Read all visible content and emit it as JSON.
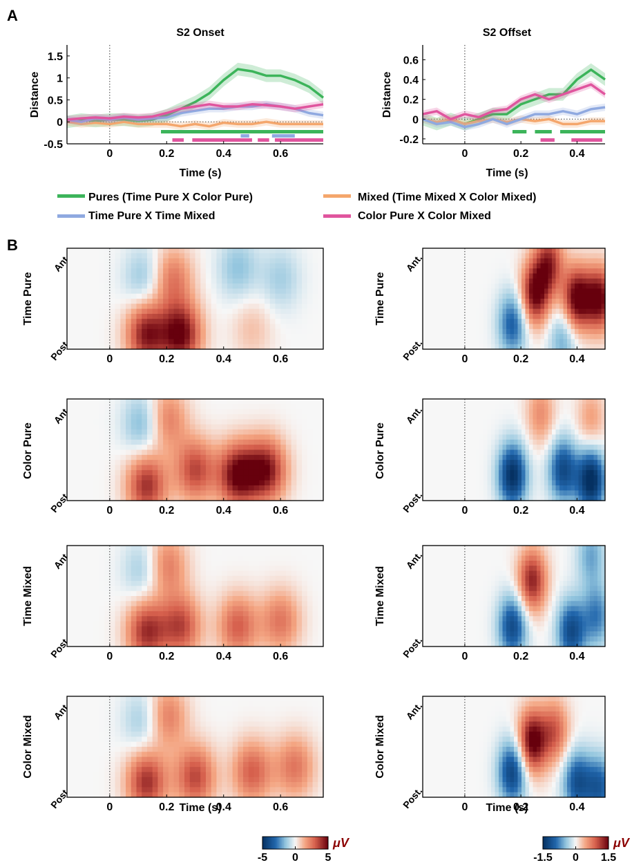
{
  "panel_labels": {
    "a": "A",
    "b": "B"
  },
  "colors": {
    "pures": "#3cb45a",
    "mixed": "#f4a66c",
    "time_pure_x_time_mixed": "#8fa9e0",
    "color_pure_x_color_mixed": "#e0559e"
  },
  "legend": [
    {
      "label": "Pures (Time Pure X Color Pure)",
      "color": "#3cb45a"
    },
    {
      "label": "Mixed (Time Mixed X Color Mixed)",
      "color": "#f4a66c"
    },
    {
      "label": "Time Pure X Time Mixed",
      "color": "#8fa9e0"
    },
    {
      "label": "Color Pure X Color Mixed",
      "color": "#e0559e"
    }
  ],
  "chart_data": [
    {
      "type": "line",
      "title": "S2 Onset",
      "xlabel": "Time (s)",
      "ylabel": "Distance",
      "xlim": [
        -0.15,
        0.75
      ],
      "ylim": [
        -0.5,
        1.75
      ],
      "xticks": [
        "0",
        "0.2",
        "0.4",
        "0.6"
      ],
      "yticks": [
        "-0.5",
        "0",
        "0.5",
        "1",
        "1.5"
      ],
      "x": [
        -0.15,
        -0.1,
        -0.05,
        0,
        0.05,
        0.1,
        0.15,
        0.2,
        0.25,
        0.3,
        0.35,
        0.4,
        0.45,
        0.5,
        0.55,
        0.6,
        0.65,
        0.7,
        0.75
      ],
      "series": [
        {
          "name": "Pures (Time Pure X Color Pure)",
          "values": [
            0.0,
            0.05,
            0.02,
            0.05,
            0.05,
            0.02,
            0.05,
            0.15,
            0.3,
            0.45,
            0.65,
            0.95,
            1.2,
            1.15,
            1.05,
            1.05,
            0.95,
            0.8,
            0.55
          ]
        },
        {
          "name": "Mixed (Time Mixed X Color Mixed)",
          "values": [
            0.0,
            -0.05,
            -0.02,
            -0.05,
            0.0,
            -0.05,
            -0.05,
            -0.05,
            -0.1,
            -0.05,
            -0.1,
            -0.02,
            -0.05,
            -0.05,
            0.0,
            -0.05,
            -0.05,
            -0.05,
            -0.05
          ]
        },
        {
          "name": "Time Pure X Time Mixed",
          "values": [
            0.05,
            0.0,
            0.08,
            0.05,
            0.1,
            0.05,
            0.08,
            0.1,
            0.2,
            0.25,
            0.3,
            0.3,
            0.35,
            0.35,
            0.4,
            0.35,
            0.3,
            0.2,
            0.15
          ]
        },
        {
          "name": "Color Pure X Color Mixed",
          "values": [
            0.05,
            0.08,
            0.1,
            0.08,
            0.12,
            0.1,
            0.12,
            0.2,
            0.3,
            0.35,
            0.4,
            0.35,
            0.35,
            0.4,
            0.38,
            0.35,
            0.3,
            0.35,
            0.4
          ]
        }
      ],
      "significance_bars": [
        {
          "color": "#3cb45a",
          "segments": [
            [
              0.18,
              0.75
            ]
          ]
        },
        {
          "color": "#8fa9e0",
          "segments": [
            [
              0.46,
              0.49
            ],
            [
              0.57,
              0.65
            ]
          ]
        },
        {
          "color": "#e0559e",
          "segments": [
            [
              0.22,
              0.26
            ],
            [
              0.29,
              0.5
            ],
            [
              0.52,
              0.56
            ],
            [
              0.58,
              0.75
            ]
          ]
        }
      ]
    },
    {
      "type": "line",
      "title": "S2 Offset",
      "xlabel": "Time (s)",
      "ylabel": "Distance",
      "xlim": [
        -0.15,
        0.5
      ],
      "ylim": [
        -0.25,
        0.75
      ],
      "xticks": [
        "0",
        "0.2",
        "0.4"
      ],
      "yticks": [
        "-0.2",
        "0",
        "0.2",
        "0.4",
        "0.6"
      ],
      "x": [
        -0.15,
        -0.1,
        -0.05,
        0,
        0.05,
        0.1,
        0.15,
        0.2,
        0.25,
        0.3,
        0.35,
        0.4,
        0.45,
        0.5
      ],
      "series": [
        {
          "name": "Pures (Time Pure X Color Pure)",
          "values": [
            0.0,
            -0.05,
            0.0,
            -0.05,
            0.0,
            0.05,
            0.05,
            0.15,
            0.2,
            0.25,
            0.25,
            0.4,
            0.5,
            0.4
          ]
        },
        {
          "name": "Mixed (Time Mixed X Color Mixed)",
          "values": [
            0.0,
            -0.03,
            0.0,
            -0.05,
            -0.02,
            0.0,
            -0.03,
            0.0,
            -0.02,
            0.0,
            -0.05,
            -0.05,
            -0.02,
            -0.02
          ]
        },
        {
          "name": "Time Pure X Time Mixed",
          "values": [
            0.0,
            -0.05,
            -0.03,
            -0.08,
            -0.05,
            0.0,
            -0.05,
            0.0,
            0.05,
            0.05,
            0.08,
            0.05,
            0.1,
            0.12
          ]
        },
        {
          "name": "Color Pure X Color Mixed",
          "values": [
            0.05,
            0.08,
            0.0,
            0.05,
            0.02,
            0.08,
            0.1,
            0.2,
            0.25,
            0.2,
            0.25,
            0.3,
            0.35,
            0.25
          ]
        }
      ],
      "significance_bars": [
        {
          "color": "#3cb45a",
          "segments": [
            [
              0.17,
              0.22
            ],
            [
              0.25,
              0.31
            ],
            [
              0.34,
              0.5
            ]
          ]
        },
        {
          "color": "#e0559e",
          "segments": [
            [
              0.27,
              0.32
            ],
            [
              0.38,
              0.49
            ]
          ]
        }
      ]
    },
    {
      "type": "heatmap",
      "condition": "Time Pure",
      "ylabel": "Time Pure",
      "yticks": [
        "Ant.",
        "Post."
      ],
      "xlim": [
        -0.15,
        0.75
      ],
      "xticks": [
        "0",
        "0.2",
        "0.4",
        "0.6"
      ],
      "xlabel": "",
      "blobs": [
        {
          "x": 0.13,
          "y": 0.85,
          "v": 4.5
        },
        {
          "x": 0.25,
          "y": 0.85,
          "v": 5
        },
        {
          "x": 0.22,
          "y": 0.3,
          "v": 2.5
        },
        {
          "x": 0.12,
          "y": 0.3,
          "v": -1.5
        },
        {
          "x": 0.45,
          "y": 0.2,
          "v": -1.5
        },
        {
          "x": 0.6,
          "y": 0.3,
          "v": -1.2
        },
        {
          "x": 0.5,
          "y": 0.8,
          "v": 1
        }
      ]
    },
    {
      "type": "heatmap",
      "condition": "Time Pure",
      "ylabel": "Time Pure",
      "yticks": [
        "Ant.",
        "Post."
      ],
      "xlim": [
        -0.15,
        0.5
      ],
      "xticks": [
        "0",
        "0.2",
        "0.4"
      ],
      "xlabel": "",
      "blobs": [
        {
          "x": 0.25,
          "y": 0.45,
          "v": 1.5
        },
        {
          "x": 0.4,
          "y": 0.5,
          "v": 1.6
        },
        {
          "x": 0.48,
          "y": 0.5,
          "v": 1.5
        },
        {
          "x": 0.3,
          "y": 0.15,
          "v": 1.2
        },
        {
          "x": 0.17,
          "y": 0.75,
          "v": -1
        },
        {
          "x": 0.35,
          "y": 0.9,
          "v": -0.6
        }
      ]
    },
    {
      "type": "heatmap",
      "condition": "Color Pure",
      "ylabel": "Color Pure",
      "yticks": [
        "Ant.",
        "Post."
      ],
      "xlim": [
        -0.15,
        0.75
      ],
      "xticks": [
        "0",
        "0.2",
        "0.4",
        "0.6"
      ],
      "xlabel": "",
      "blobs": [
        {
          "x": 0.13,
          "y": 0.85,
          "v": 4
        },
        {
          "x": 0.45,
          "y": 0.75,
          "v": 5
        },
        {
          "x": 0.55,
          "y": 0.7,
          "v": 4.5
        },
        {
          "x": 0.3,
          "y": 0.7,
          "v": 3.5
        },
        {
          "x": 0.2,
          "y": 0.2,
          "v": 2.5
        },
        {
          "x": 0.12,
          "y": 0.25,
          "v": -2
        }
      ]
    },
    {
      "type": "heatmap",
      "condition": "Color Pure",
      "ylabel": "Color Pure",
      "yticks": [
        "Ant.",
        "Post."
      ],
      "xlim": [
        -0.15,
        0.5
      ],
      "xticks": [
        "0",
        "0.2",
        "0.4"
      ],
      "xlabel": "",
      "blobs": [
        {
          "x": 0.17,
          "y": 0.75,
          "v": -1.5
        },
        {
          "x": 0.45,
          "y": 0.8,
          "v": -1.6
        },
        {
          "x": 0.35,
          "y": 0.7,
          "v": -1.2
        },
        {
          "x": 0.27,
          "y": 0.15,
          "v": 0.6
        },
        {
          "x": 0.45,
          "y": 0.2,
          "v": 0.5
        }
      ]
    },
    {
      "type": "heatmap",
      "condition": "Time Mixed",
      "ylabel": "Time Mixed",
      "yticks": [
        "Ant.",
        "Post."
      ],
      "xlim": [
        -0.15,
        0.75
      ],
      "xticks": [
        "0",
        "0.2",
        "0.4",
        "0.6"
      ],
      "xlabel": "",
      "blobs": [
        {
          "x": 0.13,
          "y": 0.85,
          "v": 4
        },
        {
          "x": 0.25,
          "y": 0.8,
          "v": 3.5
        },
        {
          "x": 0.45,
          "y": 0.8,
          "v": 3
        },
        {
          "x": 0.6,
          "y": 0.75,
          "v": 2.5
        },
        {
          "x": 0.2,
          "y": 0.2,
          "v": 2.5
        },
        {
          "x": 0.12,
          "y": 0.25,
          "v": -1.5
        }
      ]
    },
    {
      "type": "heatmap",
      "condition": "Time Mixed",
      "ylabel": "Time Mixed",
      "yticks": [
        "Ant.",
        "Post."
      ],
      "xlim": [
        -0.15,
        0.5
      ],
      "xticks": [
        "0",
        "0.2",
        "0.4"
      ],
      "xlabel": "",
      "blobs": [
        {
          "x": 0.24,
          "y": 0.35,
          "v": 1.3
        },
        {
          "x": 0.17,
          "y": 0.8,
          "v": -1.2
        },
        {
          "x": 0.38,
          "y": 0.85,
          "v": -1.2
        },
        {
          "x": 0.47,
          "y": 0.7,
          "v": -0.8
        },
        {
          "x": 0.45,
          "y": 0.1,
          "v": -0.6
        }
      ]
    },
    {
      "type": "heatmap",
      "condition": "Color Mixed",
      "ylabel": "Color Mixed",
      "yticks": [
        "Ant.",
        "Post."
      ],
      "xlim": [
        -0.15,
        0.75
      ],
      "xticks": [
        "0",
        "0.2",
        "0.4",
        "0.6"
      ],
      "xlabel": "Time (s)",
      "blobs": [
        {
          "x": 0.13,
          "y": 0.85,
          "v": 4
        },
        {
          "x": 0.3,
          "y": 0.8,
          "v": 3.5
        },
        {
          "x": 0.5,
          "y": 0.75,
          "v": 3
        },
        {
          "x": 0.65,
          "y": 0.7,
          "v": 2.5
        },
        {
          "x": 0.2,
          "y": 0.2,
          "v": 2.5
        },
        {
          "x": 0.12,
          "y": 0.25,
          "v": -1.5
        }
      ]
    },
    {
      "type": "heatmap",
      "condition": "Color Mixed",
      "ylabel": "Color Mixed",
      "yticks": [
        "Ant.",
        "Post."
      ],
      "xlim": [
        -0.15,
        0.5
      ],
      "xticks": [
        "0",
        "0.2",
        "0.4"
      ],
      "xlabel": "Time (s)",
      "blobs": [
        {
          "x": 0.24,
          "y": 0.45,
          "v": 1.6
        },
        {
          "x": 0.32,
          "y": 0.35,
          "v": 0.9
        },
        {
          "x": 0.17,
          "y": 0.75,
          "v": -1.3
        },
        {
          "x": 0.4,
          "y": 0.85,
          "v": -1.1
        },
        {
          "x": 0.48,
          "y": 0.9,
          "v": -1
        }
      ]
    }
  ],
  "colorbars": [
    {
      "min": -5,
      "max": 5,
      "ticks": [
        "-5",
        "0",
        "5"
      ],
      "unit": "μV"
    },
    {
      "min": -1.5,
      "max": 1.5,
      "ticks": [
        "-1.5",
        "0",
        "1.5"
      ],
      "unit": "μV"
    }
  ]
}
